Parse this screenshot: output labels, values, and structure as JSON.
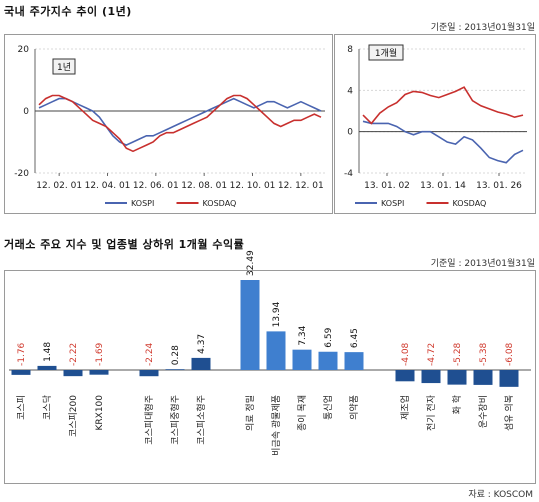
{
  "header": {
    "title": "국내 주가지수 추이 (1년)",
    "base_date": "기준일 : 2013년01월31일"
  },
  "section2": {
    "title": "거래소 주요 지수 및 업종별 상하위 1개월 수익률",
    "base_date": "기준일 : 2013년01월31일"
  },
  "source": "자료 : KOSCOM",
  "colors": {
    "kospi": "#4a64b0",
    "kosdaq": "#c8302e",
    "bar_main": "#3f7fcf",
    "bar_dark": "#1f4f91",
    "positive_label": "#111111",
    "negative_label": "#d03a2e"
  },
  "chart_data": [
    {
      "type": "line",
      "tag": "1년",
      "x_ticks": [
        "12. 02. 01",
        "12. 04. 01",
        "12. 06. 01",
        "12. 08. 01",
        "12. 10. 01",
        "12. 12. 01"
      ],
      "y_ticks": [
        "20",
        "0",
        "-20"
      ],
      "ylim": [
        -20,
        20
      ],
      "grid": true,
      "legend_position": "bottom",
      "series": [
        {
          "name": "KOSPI",
          "values": [
            1,
            2,
            3,
            4,
            4,
            3,
            2,
            1,
            0,
            -2,
            -5,
            -8,
            -10,
            -11,
            -10,
            -9,
            -8,
            -8,
            -7,
            -6,
            -5,
            -4,
            -3,
            -2,
            -1,
            0,
            1,
            2,
            3,
            4,
            3,
            2,
            1,
            2,
            3,
            3,
            2,
            1,
            2,
            3,
            2,
            1,
            0
          ]
        },
        {
          "name": "KOSDAQ",
          "values": [
            2,
            4,
            5,
            5,
            4,
            3,
            1,
            -1,
            -3,
            -4,
            -5,
            -7,
            -9,
            -12,
            -13,
            -12,
            -11,
            -10,
            -8,
            -7,
            -7,
            -6,
            -5,
            -4,
            -3,
            -2,
            0,
            2,
            4,
            5,
            5,
            4,
            2,
            0,
            -2,
            -4,
            -5,
            -4,
            -3,
            -3,
            -2,
            -1,
            -2
          ]
        }
      ]
    },
    {
      "type": "line",
      "tag": "1개월",
      "x_ticks": [
        "13. 01. 02",
        "13. 01. 14",
        "13. 01. 26"
      ],
      "y_ticks": [
        "8",
        "4",
        "0",
        "-4"
      ],
      "ylim": [
        -4,
        8
      ],
      "grid": true,
      "legend_position": "bottom",
      "series": [
        {
          "name": "KOSPI",
          "values": [
            1,
            0.8,
            0.8,
            0.8,
            0.5,
            0,
            -0.3,
            0,
            0,
            -0.5,
            -1,
            -1.2,
            -0.5,
            -0.8,
            -1.6,
            -2.5,
            -2.8,
            -3.0,
            -2.2,
            -1.8
          ]
        },
        {
          "name": "KOSDAQ",
          "values": [
            1.6,
            0.8,
            1.8,
            2.4,
            2.8,
            3.6,
            3.9,
            3.8,
            3.5,
            3.3,
            3.6,
            3.9,
            4.3,
            3.0,
            2.5,
            2.2,
            1.9,
            1.7,
            1.4,
            1.6
          ]
        }
      ]
    },
    {
      "type": "bar",
      "categories": [
        "코스피",
        "코스닥",
        "코스피200",
        "KRX100",
        "코스피대형주",
        "코스피중형주",
        "코스피소형주",
        "의료 정밀",
        "비금속 광물제품",
        "종이 목재",
        "통신업",
        "의약품",
        "제조업",
        "전기 전자",
        "화 학",
        "운수장비",
        "섬유 의복"
      ],
      "values": [
        -1.76,
        1.48,
        -2.22,
        -1.69,
        -2.24,
        0.28,
        4.37,
        32.49,
        13.94,
        7.34,
        6.59,
        6.45,
        -4.08,
        -4.72,
        -5.28,
        -5.38,
        -6.08
      ],
      "value_labels": [
        "-1.76",
        "1.48",
        "-2.22",
        "-1.69",
        "-2.24",
        "0.28",
        "4.37",
        "32.49",
        "13.94",
        "7.34",
        "6.59",
        "6.45",
        "-4.08",
        "-4.72",
        "-5.28",
        "-5.38",
        "-6.08"
      ],
      "ylim": [
        -10,
        35
      ],
      "grid": false
    }
  ]
}
